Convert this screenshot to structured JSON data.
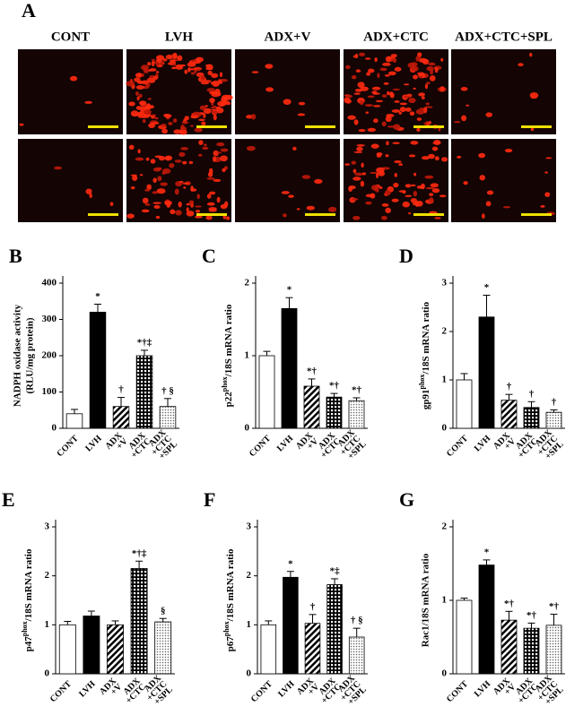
{
  "panel_a": {
    "label": "A",
    "columns": [
      "CONT",
      "LVH",
      "ADX+V",
      "ADX+CTC",
      "ADX+CTC+SPL"
    ]
  },
  "chart_data": [
    {
      "type": "bar",
      "label": "B",
      "ylabel": [
        "NADPH oxidase activity",
        "(RLU/mg protein)"
      ],
      "categories": [
        [
          "CONT"
        ],
        [
          "LVH"
        ],
        [
          "ADX",
          "+V"
        ],
        [
          "ADX",
          "+CTC"
        ],
        [
          "ADX",
          "+CTC",
          "+SPL"
        ]
      ],
      "values": [
        40,
        320,
        60,
        200,
        60
      ],
      "errors": [
        12,
        22,
        25,
        15,
        22
      ],
      "annotations": [
        null,
        "*",
        "†",
        "*†‡",
        "† §"
      ],
      "fills": [
        "white",
        "black",
        "hatch",
        "grid",
        "dots"
      ],
      "ylim": [
        0,
        400
      ],
      "yticks": [
        0,
        100,
        200,
        300,
        400
      ]
    },
    {
      "type": "bar",
      "label": "C",
      "ylabel": [
        "p22",
        "phox",
        "/18S mRNA ratio"
      ],
      "categories": [
        [
          "CONT"
        ],
        [
          "LVH"
        ],
        [
          "ADX",
          "+V"
        ],
        [
          "ADX",
          "+CTC"
        ],
        [
          "ADX",
          "+CTC",
          "+SPL"
        ]
      ],
      "values": [
        1.0,
        1.65,
        0.58,
        0.43,
        0.38
      ],
      "errors": [
        0.06,
        0.15,
        0.1,
        0.05,
        0.04
      ],
      "annotations": [
        null,
        "*",
        "*†",
        "*†",
        "*†"
      ],
      "fills": [
        "white",
        "black",
        "hatch",
        "grid",
        "dots"
      ],
      "ylim": [
        0,
        2
      ],
      "yticks": [
        0,
        1,
        2
      ]
    },
    {
      "type": "bar",
      "label": "D",
      "ylabel": [
        "gp91",
        "phox",
        "/18S mRNA ratio"
      ],
      "categories": [
        [
          "CONT"
        ],
        [
          "LVH"
        ],
        [
          "ADX",
          "+V"
        ],
        [
          "ADX",
          "+CTC"
        ],
        [
          "ADX",
          "+CTC",
          "+SPL"
        ]
      ],
      "values": [
        1.0,
        2.3,
        0.58,
        0.43,
        0.33
      ],
      "errors": [
        0.13,
        0.45,
        0.12,
        0.12,
        0.05
      ],
      "annotations": [
        null,
        "*",
        "†",
        "†",
        "†"
      ],
      "fills": [
        "white",
        "black",
        "hatch",
        "grid",
        "dots"
      ],
      "ylim": [
        0,
        3
      ],
      "yticks": [
        0,
        1,
        2,
        3
      ]
    },
    {
      "type": "bar",
      "label": "E",
      "ylabel": [
        "p47",
        "phox",
        "/18S mRNA ratio"
      ],
      "categories": [
        [
          "CONT"
        ],
        [
          "LVH"
        ],
        [
          "ADX",
          "+V"
        ],
        [
          "ADX",
          "+CTC"
        ],
        [
          "ADX",
          "+CTC",
          "+SPL"
        ]
      ],
      "values": [
        1.0,
        1.18,
        1.0,
        2.15,
        1.06
      ],
      "errors": [
        0.07,
        0.1,
        0.08,
        0.15,
        0.07
      ],
      "annotations": [
        null,
        null,
        null,
        "*†‡",
        "§"
      ],
      "fills": [
        "white",
        "black",
        "hatch",
        "grid",
        "dots"
      ],
      "ylim": [
        0,
        3
      ],
      "yticks": [
        0,
        1,
        2,
        3
      ]
    },
    {
      "type": "bar",
      "label": "F",
      "ylabel": [
        "p67",
        "phox",
        "/18S mRNA ratio"
      ],
      "categories": [
        [
          "CONT"
        ],
        [
          "LVH"
        ],
        [
          "ADX",
          "+V"
        ],
        [
          "ADX",
          "+CTC"
        ],
        [
          "ADX",
          "+CTC",
          "+SPL"
        ]
      ],
      "values": [
        1.0,
        1.97,
        1.03,
        1.82,
        0.75
      ],
      "errors": [
        0.08,
        0.12,
        0.18,
        0.12,
        0.18
      ],
      "annotations": [
        null,
        "*",
        "†",
        "*‡",
        "† §"
      ],
      "fills": [
        "white",
        "black",
        "hatch",
        "grid",
        "dots"
      ],
      "ylim": [
        0,
        3
      ],
      "yticks": [
        0,
        1,
        2,
        3
      ]
    },
    {
      "type": "bar",
      "label": "G",
      "ylabel": [
        "Rac1/18S mRNA ratio"
      ],
      "categories": [
        [
          "CONT"
        ],
        [
          "LVH"
        ],
        [
          "ADX",
          "+V"
        ],
        [
          "ADX",
          "+CTC"
        ],
        [
          "ADX",
          "+CTC",
          "+SPL"
        ]
      ],
      "values": [
        1.0,
        1.48,
        0.73,
        0.62,
        0.66
      ],
      "errors": [
        0.03,
        0.07,
        0.12,
        0.07,
        0.15
      ],
      "annotations": [
        null,
        "*",
        "*†",
        "*†",
        "*†"
      ],
      "fills": [
        "white",
        "black",
        "hatch",
        "grid",
        "dots"
      ],
      "ylim": [
        0,
        2
      ],
      "yticks": [
        0,
        1,
        2
      ]
    }
  ]
}
